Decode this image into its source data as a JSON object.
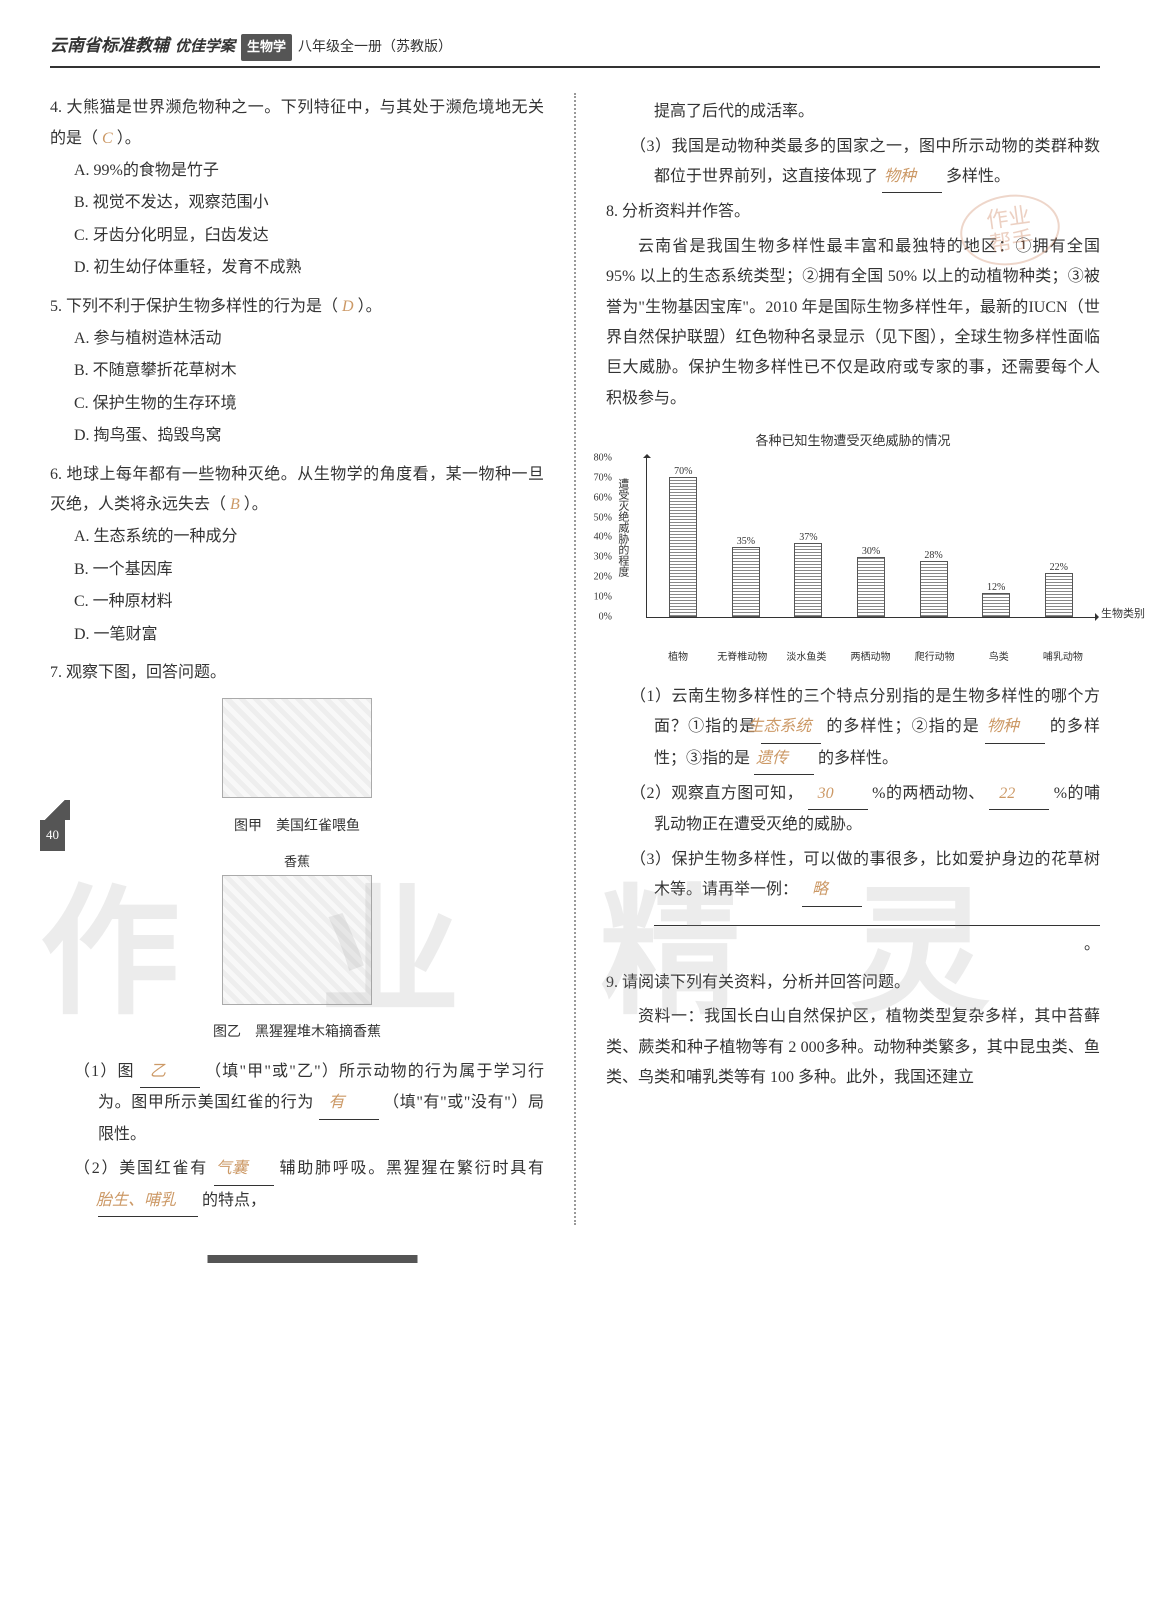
{
  "header": {
    "main": "云南省标准教辅",
    "sub1": "优佳学案",
    "subject": "生物学",
    "grade": "八年级全一册（苏教版）"
  },
  "page_number": "40",
  "watermark": {
    "c1": "作",
    "c2": "业",
    "c3": "精",
    "c4": "灵"
  },
  "stamp": {
    "l1": "作业",
    "l2": "帮手"
  },
  "q4": {
    "stem": "4. 大熊猫是世界濒危物种之一。下列特征中，与其处于濒危境地无关的是（",
    "answer": "C",
    "stem_end": "）。",
    "A": "A. 99%的食物是竹子",
    "B": "B. 视觉不发达，观察范围小",
    "C": "C. 牙齿分化明显，臼齿发达",
    "D": "D. 初生幼仔体重轻，发育不成熟"
  },
  "q5": {
    "stem": "5. 下列不利于保护生物多样性的行为是（",
    "answer": "D",
    "stem_end": "）。",
    "A": "A. 参与植树造林活动",
    "B": "B. 不随意攀折花草树木",
    "C": "C. 保护生物的生存环境",
    "D": "D. 掏鸟蛋、捣毁鸟窝"
  },
  "q6": {
    "stem": "6. 地球上每年都有一些物种灭绝。从生物学的角度看，某一物种一旦灭绝，人类将永远失去（",
    "answer": "B",
    "stem_end": "）。",
    "A": "A. 生态系统的一种成分",
    "B": "B. 一个基因库",
    "C": "C. 一种原材料",
    "D": "D. 一笔财富"
  },
  "q7": {
    "stem": "7. 观察下图，回答问题。",
    "fig1_caption": "图甲　美国红雀喂鱼",
    "fig2_label": "香蕉",
    "fig2_caption": "图乙　黑猩猩堆木箱摘香蕉",
    "sub1_a": "（1）图",
    "sub1_ans1": "乙",
    "sub1_b": "（填\"甲\"或\"乙\"）所示动物的行为属于学习行为。图甲所示美国红雀的行为",
    "sub1_ans2": "有",
    "sub1_c": "（填\"有\"或\"没有\"）局限性。",
    "sub2_a": "（2）美国红雀有",
    "sub2_ans1": "气囊",
    "sub2_b": "辅助肺呼吸。黑猩猩在繁衍时具有",
    "sub2_ans2": "胎生、哺乳",
    "sub2_c": "的特点，"
  },
  "col2_top": "提高了后代的成活率。",
  "q7_sub3": {
    "a": "（3）我国是动物种类最多的国家之一，图中所示动物的类群种数都位于世界前列，这直接体现了",
    "ans": "物种",
    "b": "多样性。"
  },
  "q8": {
    "stem": "8. 分析资料并作答。",
    "para": "云南省是我国生物多样性最丰富和最独特的地区：①拥有全国 95% 以上的生态系统类型；②拥有全国 50% 以上的动植物种类；③被誉为\"生物基因宝库\"。2010 年是国际生物多样性年，最新的IUCN（世界自然保护联盟）红色物种名录显示（见下图），全球生物多样性面临巨大威胁。保护生物多样性已不仅是政府或专家的事，还需要每个人积极参与。",
    "chart": {
      "title": "各种已知生物遭受灭绝威胁的情况",
      "y_axis_label": "遭受灭绝威胁的程度",
      "y_ticks": [
        "80%",
        "70%",
        "60%",
        "50%",
        "40%",
        "30%",
        "20%",
        "10%",
        "0%"
      ],
      "x_axis_label": "生物类别",
      "categories": [
        "植物",
        "无脊椎动物",
        "淡水鱼类",
        "两栖动物",
        "爬行动物",
        "鸟类",
        "哺乳动物"
      ],
      "values": [
        70,
        35,
        37,
        30,
        28,
        12,
        22
      ],
      "value_labels": [
        "70%",
        "35%",
        "37%",
        "30%",
        "28%",
        "12%",
        "22%"
      ],
      "max": 80
    },
    "sub1_a": "（1）云南生物多样性的三个特点分别指的是生物多样性的哪个方面？①指的是",
    "sub1_ans1": "生态系统",
    "sub1_b": "的多样性；②指的是",
    "sub1_ans2": "物种",
    "sub1_c": "的多样性；③指的是",
    "sub1_ans3": "遗传",
    "sub1_d": "的多样性。",
    "sub2_a": "（2）观察直方图可知，",
    "sub2_ans1": "30",
    "sub2_b": "%的两栖动物、",
    "sub2_ans2": "22",
    "sub2_c": "%的哺乳动物正在遭受灭绝的威胁。",
    "sub3_a": "（3）保护生物多样性，可以做的事很多，比如爱护身边的花草树木等。请再举一例：",
    "sub3_ans": "略",
    "sub3_b": "。"
  },
  "q9": {
    "stem": "9. 请阅读下列有关资料，分析并回答问题。",
    "para": "资料一：我国长白山自然保护区，植物类型复杂多样，其中苔藓类、蕨类和种子植物等有 2 000多种。动物种类繁多，其中昆虫类、鱼类、鸟类和哺乳类等有 100 多种。此外，我国还建立"
  }
}
